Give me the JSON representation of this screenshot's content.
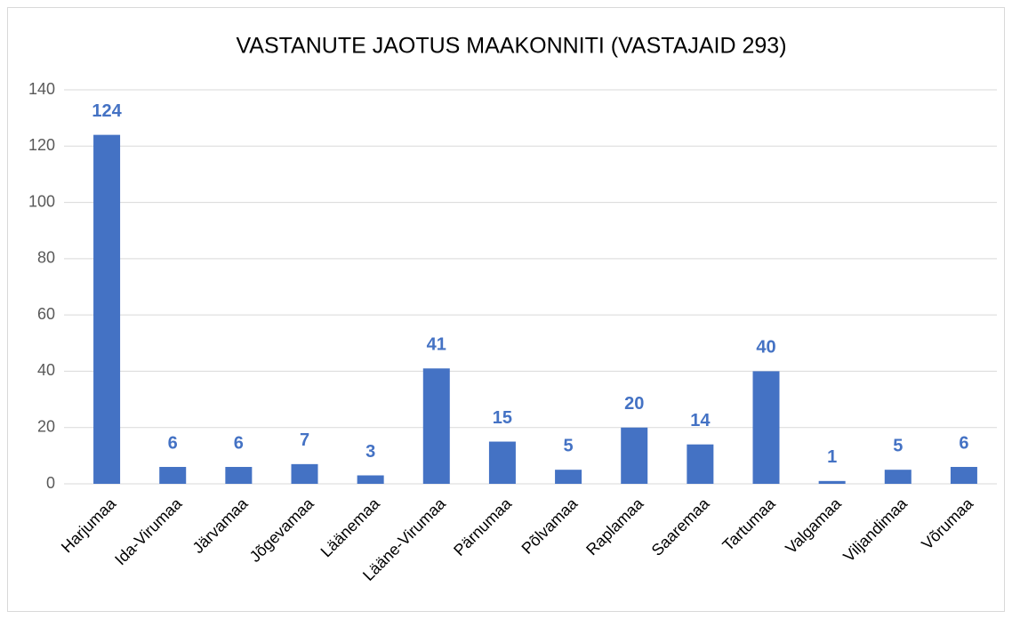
{
  "chart_data": {
    "type": "bar",
    "title": "VASTANUTE JAOTUS MAAKONNITI (VASTAJAID 293)",
    "categories": [
      "Harjumaa",
      "Ida-Virumaa",
      "Järvamaa",
      "Jõgevamaa",
      "Läänemaa",
      "Lääne-Virumaa",
      "Pärnumaa",
      "Põlvamaa",
      "Raplamaa",
      "Saaremaa",
      "Tartumaa",
      "Valgamaa",
      "Viljandimaa",
      "Võrumaa"
    ],
    "values": [
      124,
      6,
      6,
      7,
      3,
      41,
      15,
      5,
      20,
      14,
      40,
      1,
      5,
      6
    ],
    "color": "#4472c4",
    "ylim": [
      0,
      140
    ],
    "yticks": [
      0,
      20,
      40,
      60,
      80,
      100,
      120,
      140
    ],
    "grid": true
  }
}
